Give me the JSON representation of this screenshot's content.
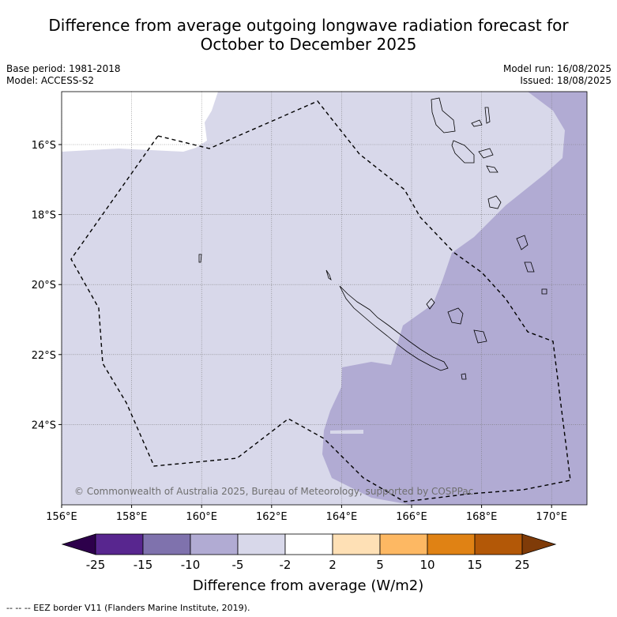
{
  "title_line1": "Difference from average outgoing longwave radiation forecast for",
  "title_line2": "October to December 2025",
  "base_period": "Base period: 1981-2018",
  "model": "Model: ACCESS-S2",
  "model_run": "Model run: 16/08/2025",
  "issued": "Issued: 18/08/2025",
  "copyright": "© Commonwealth of Australia 2025, Bureau of Meteorology, supported by COSPPac",
  "map": {
    "lon_ticks": [
      "156°E",
      "158°E",
      "160°E",
      "162°E",
      "164°E",
      "166°E",
      "168°E",
      "170°E"
    ],
    "lat_ticks": [
      "16°S",
      "18°S",
      "20°S",
      "22°S",
      "24°S"
    ],
    "grid": true
  },
  "colorbar": {
    "label": "Difference from average (W/m2)",
    "tick_labels": [
      "-25",
      "-15",
      "-10",
      "-5",
      "-2",
      "2",
      "5",
      "10",
      "15",
      "25"
    ],
    "colors": [
      "#58268f",
      "#7f72ad",
      "#b1abd3",
      "#d8d8ea",
      "#ffffff",
      "#fee0b5",
      "#fdb863",
      "#e08214",
      "#b35807"
    ],
    "under_color": "#2d004b",
    "over_color": "#7f3b08"
  },
  "footnote": "--  --  -- EEZ border V11 (Flanders Marine Institute, 2019)."
}
